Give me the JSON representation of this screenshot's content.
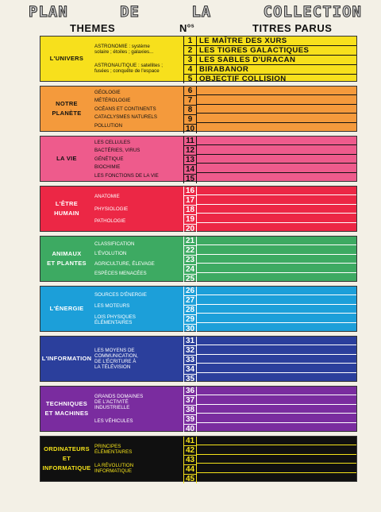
{
  "header": {
    "title_words": [
      "PLAN",
      "DE",
      "LA",
      "COLLECTION"
    ],
    "col_themes": "THEMES",
    "col_no": "N",
    "col_no_sup": "os",
    "col_titres": "TITRES PARUS"
  },
  "sections": [
    {
      "theme": "L'UNIVERS",
      "color": "#f7e01c",
      "text": "#111111",
      "subs": [
        "ASTRONOMIE : système\nsolaire ; étoiles ; galaxies...",
        "ASTRONAUTIQUE : satellites ;\nfusées ; conquête de l'espace"
      ],
      "nums": [
        "1",
        "2",
        "3",
        "4",
        "5"
      ],
      "titles": [
        "LE MAÎTRE DES XURS",
        "LES TIGRES GALACTIQUES",
        "LES SABLES D'URACAN",
        "BIRABANOR",
        "OBJECTIF COLLISION"
      ]
    },
    {
      "theme": "NOTRE\nPLANÈTE",
      "color": "#f49a3c",
      "text": "#111111",
      "subs": [
        "GÉOLOGIE",
        "MÉTÉROLOGIE",
        "OCÉANS ET CONTINENTS",
        "CATACLYSMES NATURELS",
        "POLLUTION"
      ],
      "nums": [
        "6",
        "7",
        "8",
        "9",
        "10"
      ],
      "titles": [
        "",
        "",
        "",
        "",
        ""
      ]
    },
    {
      "theme": "LA VIE",
      "color": "#ee5b8c",
      "text": "#111111",
      "subs": [
        "LES CELLULES",
        "BACTÉRIES, VIRUS",
        "GÉNÉTIQUE",
        "BIOCHIMIE",
        "LES FONCTIONS DE LA VIE"
      ],
      "nums": [
        "11",
        "12",
        "13",
        "14",
        "15"
      ],
      "titles": [
        "",
        "",
        "",
        "",
        ""
      ]
    },
    {
      "theme": "L'ÊTRE\nHUMAIN",
      "color": "#ec2745",
      "text": "#ffffff",
      "subs": [
        "ANATOMIE",
        "PHYSIOLOGIE",
        "PATHOLOGIE"
      ],
      "nums": [
        "16",
        "17",
        "18",
        "19",
        "20"
      ],
      "titles": [
        "",
        "",
        "",
        "",
        ""
      ]
    },
    {
      "theme": "ANIMAUX\nET PLANTES",
      "color": "#3daa62",
      "text": "#ffffff",
      "subs": [
        "CLASSIFICATION",
        "L'ÉVOLUTION",
        "AGRICULTURE, ÉLEVAGE",
        "ESPÈCES MENACÉES"
      ],
      "nums": [
        "21",
        "22",
        "23",
        "24",
        "25"
      ],
      "titles": [
        "",
        "",
        "",
        "",
        ""
      ]
    },
    {
      "theme": "L'ÉNERGIE",
      "color": "#1c9fd9",
      "text": "#ffffff",
      "subs": [
        "SOURCES D'ÉNERGIE",
        "LES MOTEURS",
        "LOIS PHYSIQUES\nÉLÉMENTAIRES"
      ],
      "nums": [
        "26",
        "27",
        "28",
        "29",
        "30"
      ],
      "titles": [
        "",
        "",
        "",
        "",
        ""
      ]
    },
    {
      "theme": "L'INFORMATION",
      "color": "#2b3f9c",
      "text": "#ffffff",
      "subs": [
        "LES MOYENS DE\nCOMMUNICATION,\nDE L'ÉCRITURE À\nLA TÉLÉVISION"
      ],
      "nums": [
        "31",
        "32",
        "33",
        "34",
        "35"
      ],
      "titles": [
        "",
        "",
        "",
        "",
        ""
      ]
    },
    {
      "theme": "TECHNIQUES\nET MACHINES",
      "color": "#7a2c9f",
      "text": "#ffffff",
      "subs": [
        "GRANDS DOMAINES\nDE L'ACTIVITÉ\nINDUSTRIELLE",
        "LES VÉHICULES"
      ],
      "nums": [
        "36",
        "37",
        "38",
        "39",
        "40"
      ],
      "titles": [
        "",
        "",
        "",
        "",
        ""
      ]
    },
    {
      "theme": "ORDINATEURS\nET\nINFORMATIQUE",
      "color": "#101010",
      "text": "#f5e31a",
      "subs": [
        "PRINCIPES\nÉLÉMENTAIRES",
        "LA RÉVOLUTION\nINFORMATIQUE"
      ],
      "nums": [
        "41",
        "42",
        "43",
        "44",
        "45"
      ],
      "titles": [
        "",
        "",
        "",
        "",
        ""
      ]
    }
  ]
}
